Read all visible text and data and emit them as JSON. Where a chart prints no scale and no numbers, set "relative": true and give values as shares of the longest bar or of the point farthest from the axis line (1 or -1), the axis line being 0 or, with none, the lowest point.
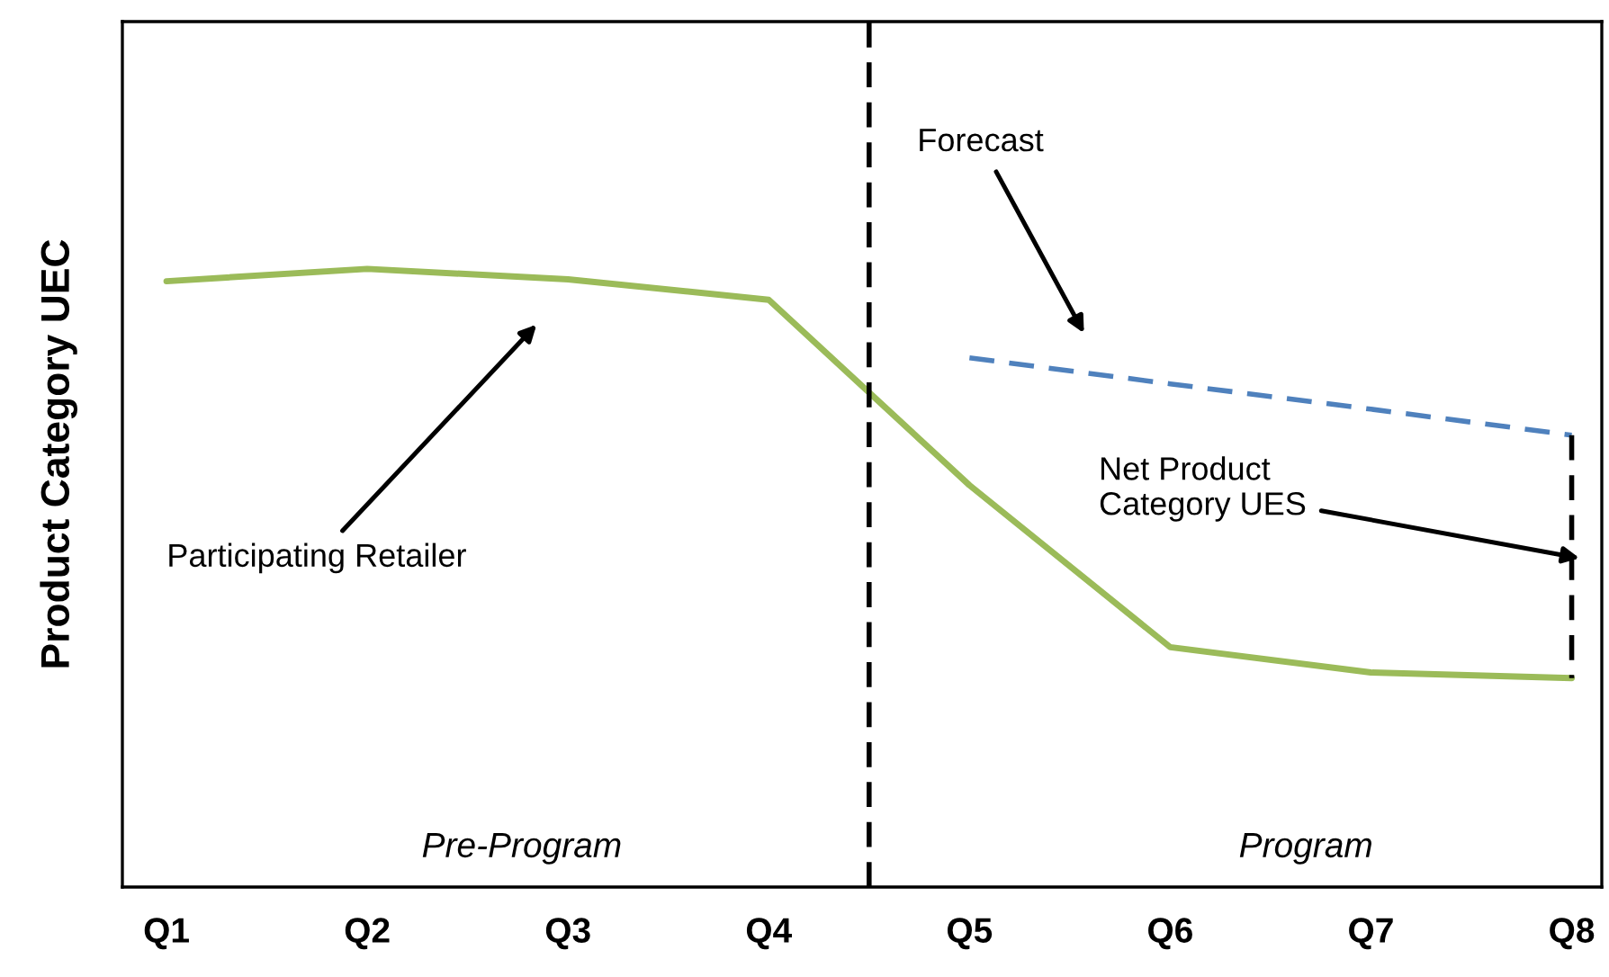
{
  "chart_data": {
    "type": "line",
    "relative": true,
    "ylabel": "Product Category UEC",
    "categories": [
      "Q1",
      "Q2",
      "Q3",
      "Q4",
      "Q5",
      "Q6",
      "Q7",
      "Q8"
    ],
    "series": [
      {
        "color": "#9bbb59",
        "line_style": "solid",
        "values": [
          0.98,
          1.0,
          0.983,
          0.95,
          0.65,
          0.388,
          0.347,
          0.338
        ]
      },
      {
        "color": "#4f81bd",
        "line_style": "dashed",
        "values": [
          null,
          null,
          null,
          null,
          0.856,
          0.814,
          0.773,
          0.731
        ]
      }
    ],
    "annotations": [
      "Forecast",
      "Participating Retailer",
      "Net Product\nCategory UES",
      "Pre-Program",
      "Program"
    ],
    "grid": false,
    "legend": false,
    "marker": "none"
  }
}
